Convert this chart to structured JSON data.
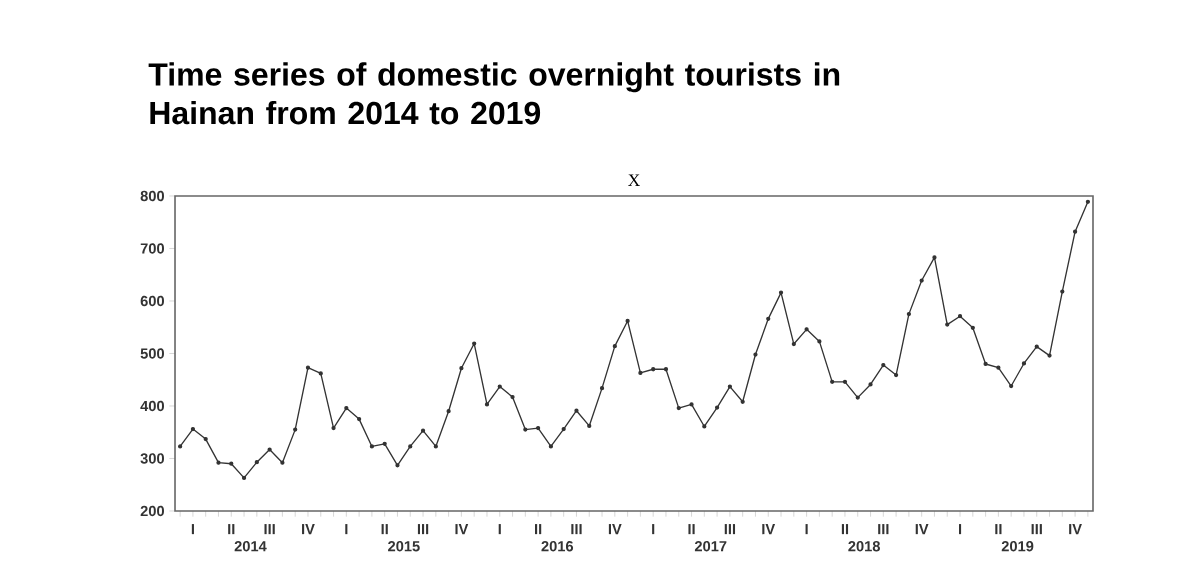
{
  "chart_data": {
    "type": "line",
    "title": "Time series of domestic overnight tourists in Hainan from 2014 to 2019",
    "subtitle": "X",
    "categories": [
      null,
      "I",
      null,
      null,
      "II",
      null,
      null,
      "III",
      null,
      null,
      "IV",
      null,
      null,
      "I",
      null,
      null,
      "II",
      null,
      null,
      "III",
      null,
      null,
      "IV",
      null,
      null,
      "I",
      null,
      null,
      "II",
      null,
      null,
      "III",
      null,
      null,
      "IV",
      null,
      null,
      "I",
      null,
      null,
      "II",
      null,
      null,
      "III",
      null,
      null,
      "IV",
      null,
      null,
      "I",
      null,
      null,
      "II",
      null,
      null,
      "III",
      null,
      null,
      "IV",
      null,
      null,
      "I",
      null,
      null,
      "II",
      null,
      null,
      "III",
      null,
      null,
      "IV",
      null
    ],
    "series": [
      {
        "color": "#333333",
        "values": [
          323,
          356,
          337,
          292,
          290,
          263,
          293,
          317,
          292,
          355,
          473,
          462,
          358,
          396,
          375,
          323,
          328,
          287,
          323,
          353,
          323,
          390,
          472,
          519,
          403,
          437,
          417,
          355,
          358,
          323,
          356,
          391,
          362,
          434,
          514,
          562,
          463,
          470,
          470,
          396,
          403,
          361,
          397,
          437,
          408,
          498,
          566,
          616,
          518,
          546,
          523,
          446,
          446,
          416,
          441,
          478,
          459,
          575,
          639,
          683,
          555,
          571,
          549,
          480,
          473,
          438,
          481,
          513,
          496,
          618,
          732,
          789
        ]
      }
    ],
    "annotations": [
      "2014",
      "2015",
      "2016",
      "2017",
      "2018",
      "2019"
    ],
    "ylim": [
      200,
      800
    ],
    "yticks": [
      200,
      300,
      400,
      500,
      600,
      700,
      800
    ],
    "marker": "circle",
    "line_style": "solid"
  }
}
